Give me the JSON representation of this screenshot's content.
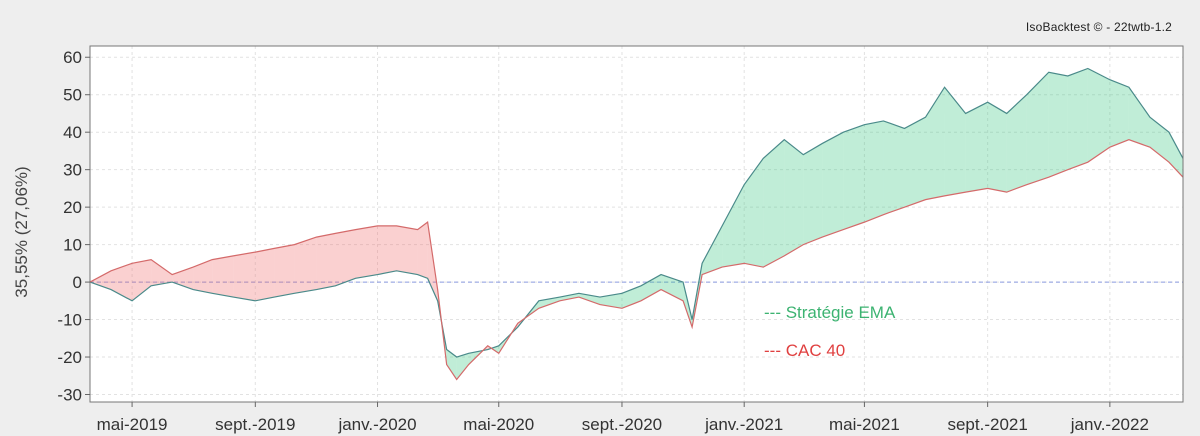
{
  "watermark": "IsoBacktest © - 22twtb-1.2",
  "chart_data": {
    "type": "area",
    "ylabel": "35,55% (27,06%)",
    "xlabel": "",
    "ylim": [
      -32,
      63
    ],
    "yticks": [
      -30,
      -20,
      -10,
      0,
      10,
      20,
      30,
      40,
      50,
      60
    ],
    "grid": true,
    "legend_position": "center-right",
    "xlim": [
      "2019-03-20",
      "2022-03-15"
    ],
    "xticks": [
      {
        "date": "2019-05-01",
        "label": "mai-2019"
      },
      {
        "date": "2019-09-01",
        "label": "sept.-2019"
      },
      {
        "date": "2020-01-01",
        "label": "janv.-2020"
      },
      {
        "date": "2020-05-01",
        "label": "mai-2020"
      },
      {
        "date": "2020-09-01",
        "label": "sept.-2020"
      },
      {
        "date": "2021-01-01",
        "label": "janv.-2021"
      },
      {
        "date": "2021-05-01",
        "label": "mai-2021"
      },
      {
        "date": "2021-09-01",
        "label": "sept.-2021"
      },
      {
        "date": "2022-01-01",
        "label": "janv.-2022"
      }
    ],
    "x": [
      "2019-03-20",
      "2019-04-10",
      "2019-05-01",
      "2019-05-20",
      "2019-06-10",
      "2019-07-01",
      "2019-07-20",
      "2019-08-10",
      "2019-09-01",
      "2019-09-20",
      "2019-10-10",
      "2019-11-01",
      "2019-11-20",
      "2019-12-10",
      "2020-01-01",
      "2020-01-20",
      "2020-02-10",
      "2020-02-20",
      "2020-03-01",
      "2020-03-10",
      "2020-03-20",
      "2020-04-01",
      "2020-04-20",
      "2020-05-01",
      "2020-05-20",
      "2020-06-10",
      "2020-07-01",
      "2020-07-20",
      "2020-08-10",
      "2020-09-01",
      "2020-09-20",
      "2020-10-10",
      "2020-11-01",
      "2020-11-10",
      "2020-11-20",
      "2020-12-10",
      "2021-01-01",
      "2021-01-20",
      "2021-02-10",
      "2021-03-01",
      "2021-03-20",
      "2021-04-10",
      "2021-05-01",
      "2021-05-20",
      "2021-06-10",
      "2021-07-01",
      "2021-07-20",
      "2021-08-10",
      "2021-09-01",
      "2021-09-20",
      "2021-10-10",
      "2021-11-01",
      "2021-11-20",
      "2021-12-10",
      "2022-01-01",
      "2022-01-20",
      "2022-02-10",
      "2022-03-01",
      "2022-03-15"
    ],
    "series": [
      {
        "name": "Stratégie EMA",
        "color": "#3cb371",
        "values": [
          0,
          -2,
          -5,
          -1,
          0,
          -2,
          -3,
          -4,
          -5,
          -4,
          -3,
          -2,
          -1,
          1,
          2,
          3,
          2,
          1,
          -5,
          -18,
          -20,
          -19,
          -18,
          -17,
          -12,
          -5,
          -4,
          -3,
          -4,
          -3,
          -1,
          2,
          0,
          -10,
          5,
          15,
          26,
          33,
          38,
          34,
          37,
          40,
          42,
          43,
          41,
          44,
          52,
          45,
          48,
          45,
          50,
          56,
          55,
          57,
          54,
          52,
          44,
          40,
          33
        ]
      },
      {
        "name": "CAC 40",
        "color": "#e04040",
        "values": [
          0,
          3,
          5,
          6,
          2,
          4,
          6,
          7,
          8,
          9,
          10,
          12,
          13,
          14,
          15,
          15,
          14,
          16,
          -2,
          -22,
          -26,
          -22,
          -17,
          -19,
          -11,
          -7,
          -5,
          -4,
          -6,
          -7,
          -5,
          -2,
          -5,
          -12,
          2,
          4,
          5,
          4,
          7,
          10,
          12,
          14,
          16,
          18,
          20,
          22,
          23,
          24,
          25,
          24,
          26,
          28,
          30,
          32,
          36,
          38,
          36,
          32,
          28
        ]
      }
    ]
  }
}
